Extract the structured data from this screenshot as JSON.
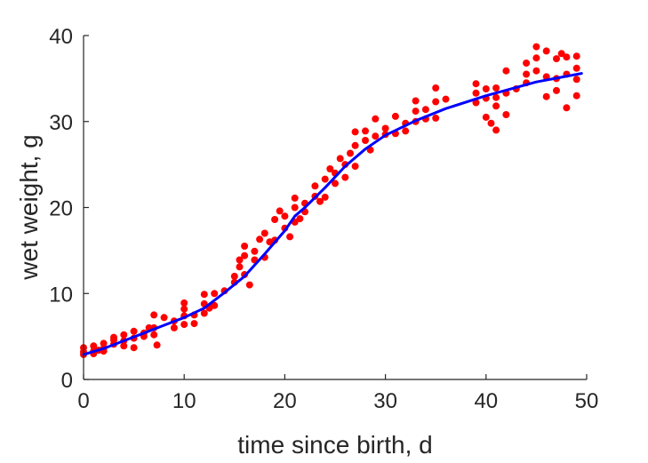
{
  "chart_data": {
    "type": "scatter",
    "title": "",
    "xlabel": "time since birth, d",
    "ylabel": "wet weight, g",
    "xlim": [
      0,
      50
    ],
    "ylim": [
      0,
      40
    ],
    "xticks": [
      0,
      10,
      20,
      30,
      40,
      50
    ],
    "yticks": [
      0,
      10,
      20,
      30,
      40
    ],
    "grid": false,
    "colors": {
      "points": "#ff0000",
      "fit": "#0000ff",
      "axes": "#262626"
    },
    "series": [
      {
        "kind": "scatter",
        "points": [
          [
            0,
            3.7
          ],
          [
            0,
            3.2
          ],
          [
            0,
            2.9
          ],
          [
            1,
            3.9
          ],
          [
            1,
            3.3
          ],
          [
            1,
            3.0
          ],
          [
            1.5,
            3.4
          ],
          [
            2,
            4.2
          ],
          [
            2,
            3.6
          ],
          [
            2,
            3.3
          ],
          [
            3,
            4.6
          ],
          [
            3,
            4.1
          ],
          [
            3,
            4.9
          ],
          [
            4,
            5.2
          ],
          [
            4,
            4.5
          ],
          [
            4,
            3.9
          ],
          [
            5,
            5.6
          ],
          [
            5,
            4.8
          ],
          [
            5,
            3.7
          ],
          [
            6,
            5.4
          ],
          [
            6,
            5.0
          ],
          [
            6.5,
            6.0
          ],
          [
            7,
            7.5
          ],
          [
            7,
            6.0
          ],
          [
            7,
            5.2
          ],
          [
            7.3,
            4.0
          ],
          [
            8,
            7.2
          ],
          [
            9,
            6.8
          ],
          [
            9,
            6.0
          ],
          [
            10,
            8.9
          ],
          [
            10,
            8.2
          ],
          [
            10,
            7.4
          ],
          [
            10,
            6.4
          ],
          [
            11,
            7.5
          ],
          [
            11,
            6.5
          ],
          [
            12,
            9.9
          ],
          [
            12,
            8.8
          ],
          [
            12,
            7.7
          ],
          [
            12.5,
            8.3
          ],
          [
            13,
            10.0
          ],
          [
            13,
            8.6
          ],
          [
            14,
            10.3
          ],
          [
            15,
            12.0
          ],
          [
            15,
            11.3
          ],
          [
            15.5,
            13.9
          ],
          [
            15.5,
            13.1
          ],
          [
            16,
            15.5
          ],
          [
            16,
            14.4
          ],
          [
            16,
            12.2
          ],
          [
            16.5,
            11.0
          ],
          [
            17,
            14.9
          ],
          [
            17,
            13.9
          ],
          [
            17.5,
            16.3
          ],
          [
            18,
            14.2
          ],
          [
            18,
            17.0
          ],
          [
            18.5,
            16.0
          ],
          [
            19,
            16.2
          ],
          [
            19,
            18.6
          ],
          [
            19.5,
            19.6
          ],
          [
            20,
            19.0
          ],
          [
            20,
            17.6
          ],
          [
            20.5,
            16.6
          ],
          [
            21,
            20.0
          ],
          [
            21,
            21.1
          ],
          [
            21,
            18.3
          ],
          [
            21.5,
            18.7
          ],
          [
            22,
            20.5
          ],
          [
            22,
            19.5
          ],
          [
            23,
            21.3
          ],
          [
            23,
            22.5
          ],
          [
            23.5,
            20.7
          ],
          [
            24,
            21.2
          ],
          [
            24,
            23.3
          ],
          [
            24.5,
            24.5
          ],
          [
            25,
            24.0
          ],
          [
            25,
            22.8
          ],
          [
            25.5,
            25.7
          ],
          [
            26,
            23.5
          ],
          [
            26,
            25.0
          ],
          [
            26.5,
            26.3
          ],
          [
            27,
            28.8
          ],
          [
            27,
            27.2
          ],
          [
            27,
            24.8
          ],
          [
            28,
            28.9
          ],
          [
            28,
            27.8
          ],
          [
            28.5,
            26.7
          ],
          [
            29,
            30.3
          ],
          [
            29,
            28.3
          ],
          [
            30,
            29.2
          ],
          [
            30,
            28.5
          ],
          [
            31,
            28.6
          ],
          [
            31,
            30.6
          ],
          [
            32,
            29.8
          ],
          [
            32,
            28.9
          ],
          [
            33,
            32.4
          ],
          [
            33,
            31.2
          ],
          [
            33,
            30.0
          ],
          [
            34,
            31.4
          ],
          [
            34,
            30.3
          ],
          [
            35,
            33.9
          ],
          [
            35,
            32.3
          ],
          [
            35,
            30.4
          ],
          [
            36,
            32.6
          ],
          [
            39,
            34.4
          ],
          [
            39,
            33.3
          ],
          [
            39,
            32.2
          ],
          [
            40,
            33.8
          ],
          [
            40,
            32.7
          ],
          [
            40,
            30.5
          ],
          [
            40.5,
            29.8
          ],
          [
            41,
            33.9
          ],
          [
            41,
            32.8
          ],
          [
            41,
            31.8
          ],
          [
            41,
            29.0
          ],
          [
            42,
            35.9
          ],
          [
            42,
            33.3
          ],
          [
            42,
            30.8
          ],
          [
            43,
            33.8
          ],
          [
            44,
            36.8
          ],
          [
            44,
            35.5
          ],
          [
            44,
            34.5
          ],
          [
            45,
            38.7
          ],
          [
            45,
            37.4
          ],
          [
            45,
            35.9
          ],
          [
            46,
            38.2
          ],
          [
            46,
            35.2
          ],
          [
            46,
            32.9
          ],
          [
            47,
            37.3
          ],
          [
            47,
            35.0
          ],
          [
            47,
            33.6
          ],
          [
            47.5,
            37.9
          ],
          [
            48,
            37.5
          ],
          [
            48,
            35.5
          ],
          [
            48,
            31.6
          ],
          [
            49,
            37.6
          ],
          [
            49,
            36.2
          ],
          [
            49,
            34.9
          ],
          [
            49,
            33.0
          ]
        ]
      },
      {
        "kind": "line",
        "points": [
          [
            0,
            2.9
          ],
          [
            2,
            3.6
          ],
          [
            4,
            4.5
          ],
          [
            6,
            5.4
          ],
          [
            8,
            6.3
          ],
          [
            10,
            7.2
          ],
          [
            12,
            8.3
          ],
          [
            14,
            10.1
          ],
          [
            16,
            12.0
          ],
          [
            18,
            14.6
          ],
          [
            20,
            17.3
          ],
          [
            21,
            19.0
          ],
          [
            22,
            20.0
          ],
          [
            24,
            22.3
          ],
          [
            26,
            24.8
          ],
          [
            28,
            26.8
          ],
          [
            30,
            28.4
          ],
          [
            33,
            30.1
          ],
          [
            36,
            31.5
          ],
          [
            40,
            33.0
          ],
          [
            45,
            34.6
          ],
          [
            49.5,
            35.6
          ]
        ]
      }
    ]
  }
}
